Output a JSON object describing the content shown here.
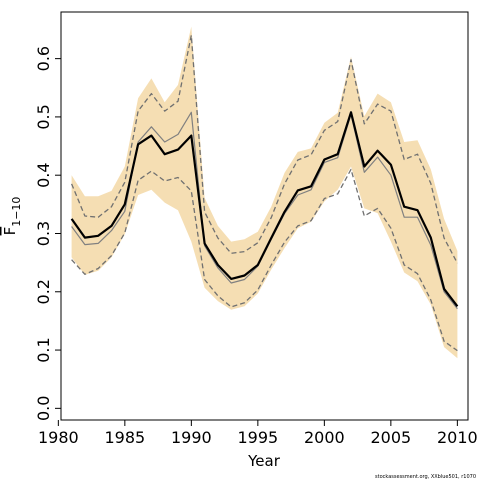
{
  "chart_data": {
    "type": "line",
    "title": "",
    "xlabel": "Year",
    "ylabel": "F̄1−10",
    "xlim": [
      1980.2,
      2010.8
    ],
    "ylim": [
      -0.02,
      0.68
    ],
    "x_ticks": [
      1980,
      1985,
      1990,
      1995,
      2000,
      2005,
      2010
    ],
    "x_tick_labels": [
      "1980",
      "1985",
      "1990",
      "1995",
      "2000",
      "2005",
      "2010"
    ],
    "y_ticks": [
      0.0,
      0.1,
      0.2,
      0.3,
      0.4,
      0.5,
      0.6
    ],
    "y_tick_labels": [
      "0.0",
      "0.1",
      "0.2",
      "0.3",
      "0.4",
      "0.5",
      "0.6"
    ],
    "grid": false,
    "legend": "none",
    "x": [
      1981,
      1982,
      1983,
      1984,
      1985,
      1986,
      1987,
      1988,
      1989,
      1990,
      1991,
      1992,
      1993,
      1994,
      1995,
      1996,
      1997,
      1998,
      1999,
      2000,
      2001,
      2002,
      2003,
      2004,
      2005,
      2006,
      2007,
      2008,
      2009,
      2010
    ],
    "band": {
      "lower": [
        0.259,
        0.229,
        0.236,
        0.259,
        0.299,
        0.366,
        0.375,
        0.353,
        0.34,
        0.286,
        0.207,
        0.184,
        0.169,
        0.175,
        0.197,
        0.238,
        0.275,
        0.309,
        0.32,
        0.355,
        0.375,
        0.415,
        0.343,
        0.335,
        0.286,
        0.233,
        0.218,
        0.178,
        0.105,
        0.086
      ],
      "upper": [
        0.4,
        0.364,
        0.364,
        0.373,
        0.415,
        0.532,
        0.566,
        0.525,
        0.555,
        0.655,
        0.361,
        0.313,
        0.286,
        0.29,
        0.303,
        0.346,
        0.404,
        0.44,
        0.446,
        0.49,
        0.507,
        0.603,
        0.501,
        0.54,
        0.525,
        0.457,
        0.46,
        0.41,
        0.325,
        0.27
      ],
      "color": "#f5deb3"
    },
    "series": [
      {
        "role": "estimate",
        "values": [
          0.325,
          0.293,
          0.296,
          0.313,
          0.35,
          0.453,
          0.468,
          0.436,
          0.444,
          0.468,
          0.283,
          0.246,
          0.222,
          0.228,
          0.246,
          0.292,
          0.337,
          0.374,
          0.381,
          0.427,
          0.436,
          0.508,
          0.415,
          0.442,
          0.418,
          0.346,
          0.34,
          0.293,
          0.205,
          0.175
        ],
        "color": "#000000",
        "style": "solid-thick"
      },
      {
        "role": "line-2",
        "values": [
          0.312,
          0.281,
          0.283,
          0.305,
          0.338,
          0.457,
          0.483,
          0.457,
          0.47,
          0.508,
          0.279,
          0.241,
          0.215,
          0.221,
          0.244,
          0.29,
          0.334,
          0.366,
          0.375,
          0.422,
          0.43,
          0.504,
          0.405,
          0.431,
          0.4,
          0.328,
          0.328,
          0.28,
          0.2,
          0.171
        ],
        "color": "#808080",
        "style": "solid-thin"
      },
      {
        "role": "line-3",
        "values": [
          0.385,
          0.33,
          0.328,
          0.346,
          0.388,
          0.51,
          0.54,
          0.51,
          0.527,
          0.64,
          0.337,
          0.292,
          0.266,
          0.269,
          0.284,
          0.327,
          0.385,
          0.426,
          0.435,
          0.477,
          0.492,
          0.598,
          0.488,
          0.522,
          0.51,
          0.427,
          0.436,
          0.386,
          0.292,
          0.249
        ],
        "color": "#707070",
        "style": "dashed"
      },
      {
        "role": "line-4",
        "values": [
          0.255,
          0.23,
          0.24,
          0.262,
          0.301,
          0.391,
          0.407,
          0.39,
          0.396,
          0.373,
          0.221,
          0.193,
          0.174,
          0.181,
          0.203,
          0.246,
          0.285,
          0.313,
          0.322,
          0.36,
          0.368,
          0.41,
          0.33,
          0.343,
          0.309,
          0.246,
          0.231,
          0.186,
          0.115,
          0.099
        ],
        "color": "#707070",
        "style": "dashed"
      }
    ],
    "footnote": "stockassessment.org, XXblue501, r1070"
  }
}
